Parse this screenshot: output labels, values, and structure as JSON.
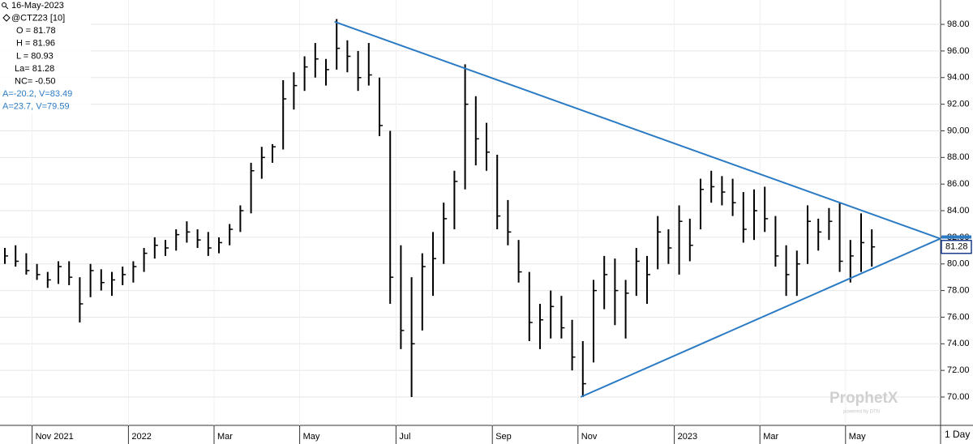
{
  "chart_data": {
    "type": "ohlc",
    "info_lines": [
      "16-May-2023",
      "@CTZ23 [10]",
      "O = 81.78",
      "H = 81.96",
      "L = 80.93",
      "La= 81.28",
      "NC= -0.50"
    ],
    "categories": [
      null,
      null,
      null,
      "Nov 2021",
      null,
      null,
      null,
      null,
      null,
      null,
      null,
      null,
      "2022",
      null,
      null,
      null,
      null,
      null,
      null,
      null,
      "Mar",
      null,
      null,
      null,
      null,
      null,
      null,
      null,
      "May",
      null,
      null,
      null,
      null,
      null,
      null,
      null,
      null,
      "Jul",
      null,
      null,
      null,
      null,
      null,
      null,
      null,
      null,
      "Sep",
      null,
      null,
      null,
      null,
      null,
      null,
      null,
      "Nov",
      null,
      null,
      null,
      null,
      null,
      null,
      null,
      null,
      "2023",
      null,
      null,
      null,
      null,
      null,
      null,
      null,
      "Mar",
      null,
      null,
      null,
      null,
      null,
      null,
      null,
      "May",
      null,
      null
    ],
    "high": [
      81.2,
      81.4,
      80.8,
      80,
      79.4,
      80.2,
      80.2,
      79,
      80,
      79.6,
      79.4,
      79.8,
      80.2,
      81.2,
      82,
      81.8,
      82.6,
      83.2,
      82.6,
      82.4,
      82,
      83,
      84.4,
      87.6,
      88.8,
      89,
      93.8,
      94.4,
      95.6,
      96.6,
      95.4,
      98.4,
      96.8,
      96,
      96.6,
      94,
      90,
      81.4,
      79,
      80.8,
      82.4,
      84.6,
      87,
      95,
      92.6,
      90.6,
      88.2,
      84.8,
      81.8,
      79.4,
      77,
      78,
      77.6,
      75.8,
      74.2,
      78.8,
      80.6,
      80.4,
      78.8,
      81.2,
      80.6,
      83.6,
      82.6,
      84.4,
      83.4,
      86.4,
      87,
      86.6,
      86.4,
      85.4,
      85.6,
      85.8,
      83.6,
      81.4,
      81,
      84.4,
      83.4,
      84.2,
      84.6,
      81.8,
      83.8,
      82.6
    ],
    "low": [
      80,
      79.8,
      79.2,
      78.8,
      78.2,
      78.5,
      78.4,
      75.6,
      77.5,
      78,
      77.6,
      78.4,
      78.6,
      79.4,
      80.4,
      80.6,
      81,
      81.6,
      81.2,
      80.6,
      80.8,
      81.4,
      82.4,
      83.8,
      86.4,
      87.6,
      88.6,
      91.6,
      93,
      94,
      93.4,
      94.6,
      94.4,
      93,
      93.4,
      89.6,
      77,
      73.6,
      70,
      75,
      77.6,
      80,
      82.6,
      85.6,
      87.4,
      87,
      82.6,
      81.4,
      78.6,
      74.2,
      73.6,
      74.4,
      74.4,
      72,
      70,
      72.6,
      76.6,
      75.4,
      74.4,
      77.6,
      77,
      79.6,
      80,
      79.2,
      80.2,
      82.6,
      84.6,
      84.4,
      83.6,
      81.6,
      81.8,
      82.4,
      79.8,
      77.6,
      77.6,
      80,
      81,
      81.8,
      79.4,
      78.6,
      79.4,
      79.8
    ],
    "close": [
      80.6,
      80.2,
      79.5,
      79.2,
      78.8,
      79.8,
      79,
      77,
      79.5,
      78.6,
      78.8,
      79.2,
      79.8,
      80.8,
      81.4,
      81.2,
      82.2,
      82.4,
      81.8,
      81.2,
      81.6,
      82.6,
      84,
      87,
      88,
      88.8,
      92.4,
      93.4,
      94.8,
      95.4,
      94.6,
      96.2,
      95.6,
      94,
      94.2,
      90.4,
      79,
      75,
      74,
      79.8,
      80.4,
      83.4,
      86.2,
      92,
      89.4,
      88.4,
      83.6,
      82.4,
      79.4,
      75.6,
      75.8,
      76.8,
      75.2,
      73,
      71,
      78,
      79.2,
      78,
      77.8,
      80.2,
      79.2,
      82.4,
      81.2,
      83.2,
      81.4,
      85.6,
      85.8,
      85.4,
      84.6,
      82.6,
      84,
      83.4,
      80.6,
      79.2,
      80,
      83.2,
      82.4,
      83.2,
      80.2,
      80.6,
      81.6,
      81.28
    ],
    "color": "#000000",
    "trendlines": [
      {
        "label": "A=-20.2, V=83.49",
        "color": "#2b7bc4",
        "start": [
          30.8,
          98.2
        ],
        "end": [
          87.4,
          81.9
        ]
      },
      {
        "label": "A=23.7, V=79.59",
        "color": "#2b7bc4",
        "start": [
          53.8,
          70
        ],
        "end": [
          87.4,
          81.9
        ]
      }
    ],
    "ylim": [
      67.87,
      99.83
    ],
    "yticks": [
      {
        "value": 70,
        "label": "70.00"
      },
      {
        "value": 72,
        "label": "72.00"
      },
      {
        "value": 74,
        "label": "74.00"
      },
      {
        "value": 76,
        "label": "76.00"
      },
      {
        "value": 78,
        "label": "78.00"
      },
      {
        "value": 80,
        "label": "80.00"
      },
      {
        "value": 82,
        "label": "82.00"
      },
      {
        "value": 84,
        "label": "84.00"
      },
      {
        "value": 86,
        "label": "86.00"
      },
      {
        "value": 88,
        "label": "88.00"
      },
      {
        "value": 90,
        "label": "90.00"
      },
      {
        "value": 92,
        "label": "92.00"
      },
      {
        "value": 94,
        "label": "94.00"
      },
      {
        "value": 96,
        "label": "96.00"
      },
      {
        "value": 98,
        "label": "98.00"
      }
    ],
    "grid": true,
    "interval": "1 Day",
    "watermark": "ProphetX",
    "watermark_sub": "powered by DTN"
  }
}
